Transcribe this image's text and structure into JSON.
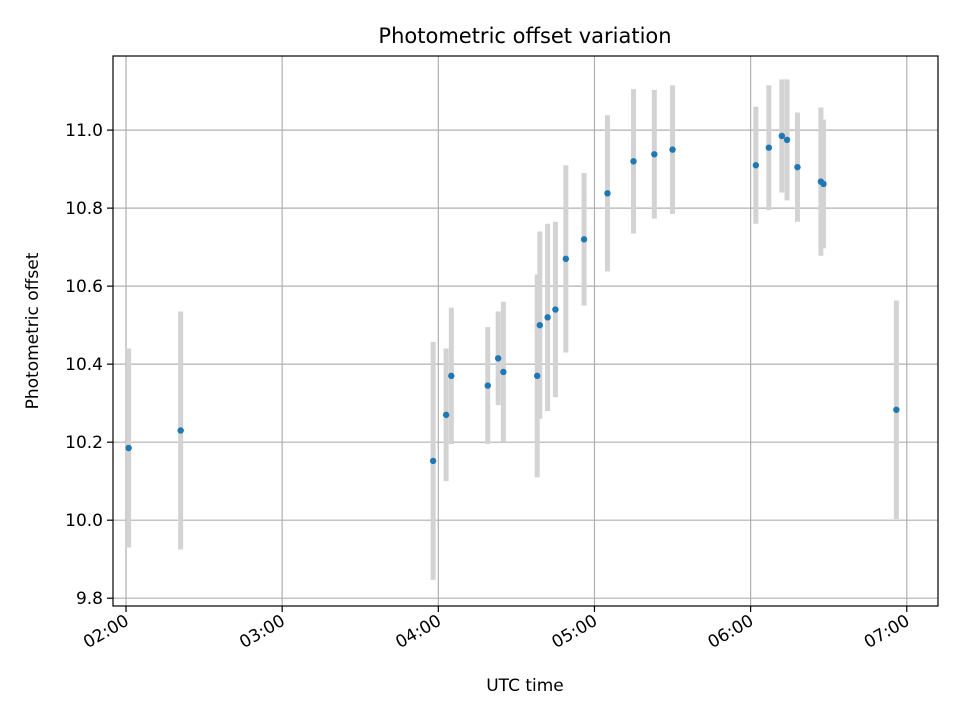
{
  "chart_data": {
    "type": "scatter",
    "title": "Photometric offset variation",
    "xlabel": "UTC time",
    "ylabel": "Photometric offset",
    "x_ticks": [
      "02:00",
      "03:00",
      "04:00",
      "05:00",
      "06:00",
      "07:00"
    ],
    "y_ticks": [
      "9.8",
      "10.0",
      "10.2",
      "10.4",
      "10.6",
      "10.8",
      "11.0"
    ],
    "xlim": [
      "01:55",
      "07:12"
    ],
    "ylim": [
      9.78,
      11.19
    ],
    "grid": true,
    "point_color": "#1f77b4",
    "errorbar_color": "#d3d3d3",
    "series": [
      {
        "points": [
          {
            "x": "02:01",
            "y": 10.185,
            "err": 0.255
          },
          {
            "x": "02:21",
            "y": 10.23,
            "err": 0.305
          },
          {
            "x": "03:58",
            "y": 10.152,
            "err": 0.305
          },
          {
            "x": "04:03",
            "y": 10.27,
            "err": 0.17
          },
          {
            "x": "04:05",
            "y": 10.37,
            "err": 0.175
          },
          {
            "x": "04:19",
            "y": 10.345,
            "err": 0.15
          },
          {
            "x": "04:23",
            "y": 10.415,
            "err": 0.12
          },
          {
            "x": "04:25",
            "y": 10.38,
            "err": 0.18
          },
          {
            "x": "04:38",
            "y": 10.37,
            "err": 0.26
          },
          {
            "x": "04:39",
            "y": 10.5,
            "err": 0.24
          },
          {
            "x": "04:42",
            "y": 10.52,
            "err": 0.24
          },
          {
            "x": "04:45",
            "y": 10.54,
            "err": 0.225
          },
          {
            "x": "04:49",
            "y": 10.67,
            "err": 0.24
          },
          {
            "x": "04:56",
            "y": 10.72,
            "err": 0.17
          },
          {
            "x": "05:05",
            "y": 10.838,
            "err": 0.2
          },
          {
            "x": "05:15",
            "y": 10.92,
            "err": 0.185
          },
          {
            "x": "05:23",
            "y": 10.938,
            "err": 0.165
          },
          {
            "x": "05:30",
            "y": 10.95,
            "err": 0.165
          },
          {
            "x": "06:02",
            "y": 10.91,
            "err": 0.15
          },
          {
            "x": "06:07",
            "y": 10.955,
            "err": 0.16
          },
          {
            "x": "06:12",
            "y": 10.985,
            "err": 0.145
          },
          {
            "x": "06:14",
            "y": 10.975,
            "err": 0.155
          },
          {
            "x": "06:18",
            "y": 10.905,
            "err": 0.14
          },
          {
            "x": "06:27",
            "y": 10.868,
            "err": 0.19
          },
          {
            "x": "06:28",
            "y": 10.862,
            "err": 0.165
          },
          {
            "x": "06:56",
            "y": 10.283,
            "err": 0.28
          }
        ]
      }
    ]
  }
}
